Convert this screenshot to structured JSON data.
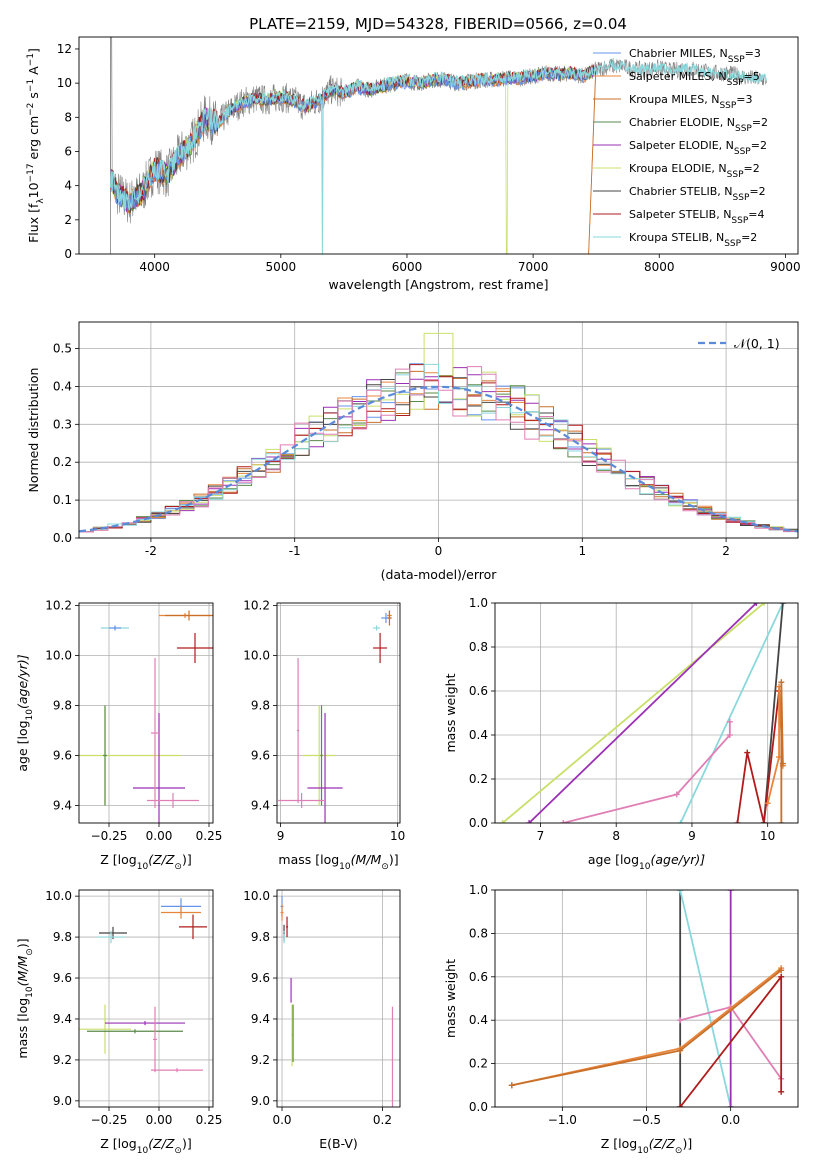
{
  "figure": {
    "title": "PLATE=2159, MJD=54328, FIBERID=0566, z=0.04"
  },
  "series": [
    {
      "name": "Chabrier MILES, N$_{SSP}$=3",
      "label_main": "Chabrier MILES, N",
      "label_sub": "SSP",
      "label_tail": "=3",
      "color": "#6495ed"
    },
    {
      "name": "Salpeter MILES, N$_{SSP}$=5",
      "label_main": "Salpeter MILES, N",
      "label_sub": "SSP",
      "label_tail": "=5",
      "color": "#e8853d"
    },
    {
      "name": "Kroupa MILES, N$_{SSP}$=3",
      "label_main": "Kroupa MILES, N",
      "label_sub": "SSP",
      "label_tail": "=3",
      "color": "#c8702a"
    },
    {
      "name": "Chabrier ELODIE, N$_{SSP}$=2",
      "label_main": "Chabrier ELODIE, N",
      "label_sub": "SSP",
      "label_tail": "=2",
      "color": "#5a8a4a"
    },
    {
      "name": "Salpeter ELODIE, N$_{SSP}$=2",
      "label_main": "Salpeter ELODIE, N",
      "label_sub": "SSP",
      "label_tail": "=2",
      "color": "#9b30b5"
    },
    {
      "name": "Kroupa ELODIE, N$_{SSP}$=2",
      "label_main": "Kroupa ELODIE, N",
      "label_sub": "SSP",
      "label_tail": "=2",
      "color": "#c8e06a"
    },
    {
      "name": "Chabrier STELIB, N$_{SSP}$=2",
      "label_main": "Chabrier STELIB, N",
      "label_sub": "SSP",
      "label_tail": "=2",
      "color": "#444444"
    },
    {
      "name": "Salpeter STELIB, N$_{SSP}$=4",
      "label_main": "Salpeter STELIB, N",
      "label_sub": "SSP",
      "label_tail": "=4",
      "color": "#b01c1c"
    },
    {
      "name": "Kroupa STELIB, N$_{SSP}$=2",
      "label_main": "Kroupa STELIB, N",
      "label_sub": "SSP",
      "label_tail": "=2",
      "color": "#8ad8dc"
    }
  ],
  "extra_colors": {
    "data": "#808080",
    "pink": "#e07fb5",
    "normal_curve": "#5b8ad8"
  },
  "chart_data": [
    {
      "id": "spectrum",
      "type": "line",
      "xlabel": "wavelength [Angstrom, rest frame]",
      "ylabel_main": "Flux [f",
      "ylabel_sub": "λ",
      "ylabel_mid": "10",
      "ylabel_sup": "−17",
      "ylabel_tail1": " erg cm",
      "ylabel_sup2": "−2",
      "ylabel_tail2": " s",
      "ylabel_sup3": "−1",
      "ylabel_tail3": " A",
      "ylabel_sup4": "−1",
      "ylabel_tail4": "]",
      "xlim": [
        3400,
        9100
      ],
      "ylim": [
        0,
        12.7
      ],
      "xticks": [
        4000,
        5000,
        6000,
        7000,
        8000,
        9000
      ],
      "yticks": [
        0,
        2,
        4,
        6,
        8,
        10,
        12
      ],
      "grid": false,
      "legend": "right",
      "continuum": {
        "x": [
          3650,
          3700,
          3800,
          3900,
          4000,
          4100,
          4200,
          4300,
          4400,
          4500,
          4600,
          4700,
          4800,
          4900,
          5000,
          5100,
          5200,
          5300,
          5400,
          5500,
          5600,
          5700,
          5800,
          5900,
          6000,
          6100,
          6200,
          6300,
          6400,
          6500,
          6600,
          6700,
          6800,
          6900,
          7000,
          7100,
          7200,
          7300,
          7400,
          7500,
          7600,
          7700,
          7800,
          7900,
          8000,
          8100,
          8200,
          8300,
          8400,
          8500,
          8600,
          8700,
          8850
        ],
        "y": [
          4.5,
          3.6,
          3.0,
          3.6,
          5.0,
          4.6,
          5.8,
          6.6,
          8.0,
          7.6,
          8.4,
          8.9,
          9.1,
          9.0,
          9.2,
          9.0,
          8.6,
          9.0,
          9.6,
          9.4,
          9.8,
          9.6,
          9.8,
          10.0,
          10.1,
          10.0,
          10.2,
          10.2,
          10.0,
          10.1,
          10.2,
          10.2,
          10.3,
          10.3,
          10.4,
          10.6,
          10.5,
          10.6,
          10.4,
          10.8,
          11.0,
          11.0,
          10.8,
          10.8,
          10.9,
          10.7,
          10.9,
          10.8,
          10.6,
          10.6,
          10.5,
          10.3,
          10.2
        ]
      },
      "model_range": [
        3650,
        7500
      ],
      "data_range": [
        3650,
        8850
      ]
    },
    {
      "id": "residuals",
      "type": "histogram",
      "xlabel": "(data-model)/error",
      "ylabel": "Normed distribution",
      "xlim": [
        -2.5,
        2.5
      ],
      "ylim": [
        0,
        0.57
      ],
      "xticks": [
        -2,
        -1,
        0,
        1,
        2
      ],
      "yticks": [
        0.0,
        0.1,
        0.2,
        0.3,
        0.4,
        0.5
      ],
      "grid": true,
      "legend": "top-right",
      "normal_label": "𝒩(0, 1)",
      "bin_width": 0.1
    },
    {
      "id": "age-vs-Z",
      "type": "scatter",
      "xlabel_main": "Z [log",
      "xlabel_sub": "10",
      "xlabel_tail": "(Z/Z",
      "xlabel_sub2": "⊙",
      "xlabel_end": ")]",
      "ylabel_main": "age  [log",
      "ylabel_sub": "10",
      "ylabel_tail": "(age/yr)]",
      "xlim": [
        -0.4,
        0.27
      ],
      "ylim": [
        9.33,
        10.21
      ],
      "xticks": [
        -0.25,
        0.0,
        0.25
      ],
      "xticklabels": [
        "−0.25",
        "0.00",
        "0.25"
      ],
      "yticks": [
        9.4,
        9.6,
        9.8,
        10.0,
        10.2
      ],
      "grid": true,
      "points": [
        {
          "c": 8,
          "x": -0.22,
          "y": 10.11,
          "dx": 0.07,
          "dy": 0.01
        },
        {
          "c": 0,
          "x": -0.22,
          "y": 10.11,
          "dx": 0.03,
          "dy": 0.01
        },
        {
          "c": 1,
          "x": 0.13,
          "y": 10.16,
          "dx": 0.13,
          "dy": 0.01
        },
        {
          "c": 2,
          "x": 0.15,
          "y": 10.16,
          "dx": 0.12,
          "dy": 0.02
        },
        {
          "c": 7,
          "x": 0.18,
          "y": 10.03,
          "dx": 0.09,
          "dy": 0.06
        },
        {
          "c": 5,
          "x": -0.27,
          "y": 9.6,
          "dx": 0.38,
          "dy": 0.2
        },
        {
          "c": 3,
          "x": -0.27,
          "y": 9.6,
          "dx": 0.01,
          "dy": 0.2
        },
        {
          "c": 4,
          "x": 0.0,
          "y": 9.47,
          "dx": 0.13,
          "dy": 0.3
        },
        {
          "c": -1,
          "x": -0.02,
          "y": 9.69,
          "dx": 0.02,
          "dy": 0.3
        },
        {
          "c": -1,
          "x": 0.07,
          "y": 9.42,
          "dx": 0.13,
          "dy": 0.03
        }
      ]
    },
    {
      "id": "age-vs-mass",
      "type": "scatter",
      "xlabel_main": "mass [log",
      "xlabel_sub": "10",
      "xlabel_tail": "(M/M",
      "xlabel_sub2": "⊙",
      "xlabel_end": ")]",
      "xlim": [
        8.97,
        10.02
      ],
      "ylim": [
        9.33,
        10.21
      ],
      "xticks": [
        9,
        10
      ],
      "yticks": [
        9.4,
        9.6,
        9.8,
        10.0,
        10.2
      ],
      "grid": true,
      "points": [
        {
          "c": 8,
          "x": 9.82,
          "y": 10.11,
          "dx": 0.03,
          "dy": 0.01
        },
        {
          "c": 0,
          "x": 9.9,
          "y": 10.15,
          "dx": 0.04,
          "dy": 0.02
        },
        {
          "c": 1,
          "x": 9.93,
          "y": 10.16,
          "dx": 0.02,
          "dy": 0.02
        },
        {
          "c": 2,
          "x": 9.93,
          "y": 10.15,
          "dx": 0.02,
          "dy": 0.03
        },
        {
          "c": 7,
          "x": 9.85,
          "y": 10.03,
          "dx": 0.06,
          "dy": 0.06
        },
        {
          "c": 5,
          "x": 9.33,
          "y": 9.6,
          "dx": 0.14,
          "dy": 0.2
        },
        {
          "c": 3,
          "x": 9.35,
          "y": 9.6,
          "dx": 0.01,
          "dy": 0.2
        },
        {
          "c": 4,
          "x": 9.38,
          "y": 9.47,
          "dx": 0.15,
          "dy": 0.3
        },
        {
          "c": -1,
          "x": 9.15,
          "y": 9.7,
          "dx": 0.01,
          "dy": 0.29
        },
        {
          "c": -1,
          "x": 9.18,
          "y": 9.42,
          "dx": 0.2,
          "dy": 0.03
        }
      ]
    },
    {
      "id": "mass-weight-vs-age",
      "type": "line",
      "xlabel_main": "age  [log",
      "xlabel_sub": "10",
      "xlabel_tail": "(age/yr)]",
      "ylabel": "mass weight",
      "xlim": [
        6.4,
        10.4
      ],
      "ylim": [
        0,
        1.0
      ],
      "xticks": [
        7,
        8,
        9,
        10
      ],
      "yticks": [
        0.0,
        0.2,
        0.4,
        0.6,
        0.8,
        1.0
      ],
      "grid": true,
      "lines": [
        {
          "c": 5,
          "x": [
            6.5,
            9.95
          ],
          "y": [
            0.0,
            1.0
          ]
        },
        {
          "c": 4,
          "x": [
            6.85,
            9.85
          ],
          "y": [
            0.0,
            1.0
          ]
        },
        {
          "c": 8,
          "x": [
            8.85,
            10.2
          ],
          "y": [
            0.0,
            1.0
          ]
        },
        {
          "c": 6,
          "x": [
            9.95,
            10.2
          ],
          "y": [
            0.0,
            1.0
          ]
        },
        {
          "c": -1,
          "x": [
            7.3,
            8.8,
            9.5,
            9.5
          ],
          "y": [
            0.0,
            0.13,
            0.4,
            0.46
          ]
        },
        {
          "c": 7,
          "x": [
            9.6,
            9.73,
            9.95,
            10.15
          ],
          "y": [
            0.0,
            0.32,
            0.0,
            0.6
          ]
        },
        {
          "c": 1,
          "x": [
            10.0,
            10.15,
            10.15,
            10.2
          ],
          "y": [
            0.09,
            0.3,
            0.62,
            0.26
          ]
        },
        {
          "c": 2,
          "x": [
            10.18,
            10.18,
            10.2
          ],
          "y": [
            0.0,
            0.64,
            0.27
          ]
        }
      ]
    },
    {
      "id": "mass-vs-Z",
      "type": "scatter",
      "xlabel_main": "Z [log",
      "xlabel_sub": "10",
      "xlabel_tail": "(Z/Z",
      "xlabel_sub2": "⊙",
      "xlabel_end": ")]",
      "ylabel_main": "mass [log",
      "ylabel_sub": "10",
      "ylabel_tail": "(M/M",
      "ylabel_sub2": "⊙",
      "ylabel_end": ")]",
      "xlim": [
        -0.4,
        0.27
      ],
      "ylim": [
        8.97,
        10.03
      ],
      "xticks": [
        -0.25,
        0.0,
        0.25
      ],
      "xticklabels": [
        "−0.25",
        "0.00",
        "0.25"
      ],
      "yticks": [
        9.0,
        9.2,
        9.4,
        9.6,
        9.8,
        10.0
      ],
      "grid": true,
      "points": [
        {
          "c": 6,
          "x": -0.23,
          "y": 9.82,
          "dx": 0.07,
          "dy": 0.03
        },
        {
          "c": 8,
          "x": -0.24,
          "y": 9.8,
          "dx": 0.07,
          "dy": 0.03
        },
        {
          "c": 0,
          "x": 0.11,
          "y": 9.95,
          "dx": 0.1,
          "dy": 0.04
        },
        {
          "c": 1,
          "x": 0.11,
          "y": 9.92,
          "dx": 0.1,
          "dy": 0.03
        },
        {
          "c": 7,
          "x": 0.17,
          "y": 9.85,
          "dx": 0.07,
          "dy": 0.06
        },
        {
          "c": 5,
          "x": -0.27,
          "y": 9.35,
          "dx": 0.13,
          "dy": 0.12
        },
        {
          "c": 3,
          "x": -0.12,
          "y": 9.34,
          "dx": 0.24,
          "dy": 0.01
        },
        {
          "c": 4,
          "x": -0.07,
          "y": 9.38,
          "dx": 0.2,
          "dy": 0.01
        },
        {
          "c": -1,
          "x": -0.02,
          "y": 9.3,
          "dx": 0.01,
          "dy": 0.16
        },
        {
          "c": -1,
          "x": 0.09,
          "y": 9.15,
          "dx": 0.13,
          "dy": 0.01
        }
      ]
    },
    {
      "id": "mass-vs-EBV",
      "type": "scatter",
      "xlabel": "E(B-V)",
      "xlim": [
        -0.01,
        0.235
      ],
      "ylim": [
        8.97,
        10.03
      ],
      "xticks": [
        0.0,
        0.2
      ],
      "xticklabels": [
        "0.0",
        "0.2"
      ],
      "yticks": [
        9.0,
        9.2,
        9.4,
        9.6,
        9.8,
        10.0
      ],
      "grid": true,
      "points": [
        {
          "c": 0,
          "x": 0.0,
          "y": 9.95,
          "dx": 0.003,
          "dy": 0.05
        },
        {
          "c": 1,
          "x": 0.0,
          "y": 9.92,
          "dx": 0.003,
          "dy": 0.04
        },
        {
          "c": 6,
          "x": 0.004,
          "y": 9.82,
          "dx": 0.002,
          "dy": 0.04
        },
        {
          "c": 8,
          "x": 0.004,
          "y": 9.8,
          "dx": 0.002,
          "dy": 0.03
        },
        {
          "c": 7,
          "x": 0.01,
          "y": 9.85,
          "dx": 0.002,
          "dy": 0.05
        },
        {
          "c": 5,
          "x": 0.02,
          "y": 9.32,
          "dx": 0.002,
          "dy": 0.15
        },
        {
          "c": 3,
          "x": 0.022,
          "y": 9.33,
          "dx": 0.001,
          "dy": 0.14
        },
        {
          "c": 4,
          "x": 0.018,
          "y": 9.54,
          "dx": 0.001,
          "dy": 0.06
        },
        {
          "c": -1,
          "x": 0.22,
          "y": 9.2,
          "dx": 0.001,
          "dy": 0.26
        }
      ]
    },
    {
      "id": "mass-weight-vs-Z",
      "type": "line",
      "xlabel_main": "Z [log",
      "xlabel_sub": "10",
      "xlabel_tail": "(Z/Z",
      "xlabel_sub2": "⊙",
      "xlabel_end": ")]",
      "ylabel": "mass weight",
      "xlim": [
        -1.4,
        0.4
      ],
      "ylim": [
        0,
        1.0
      ],
      "xticks": [
        -1.0,
        -0.5,
        0.0
      ],
      "xticklabels": [
        "−1.0",
        "−0.5",
        "0.0"
      ],
      "yticks": [
        0.0,
        0.2,
        0.4,
        0.6,
        0.8,
        1.0
      ],
      "grid": true,
      "lines": [
        {
          "c": 6,
          "x": [
            -0.3,
            -0.3
          ],
          "y": [
            0.0,
            1.0
          ]
        },
        {
          "c": 8,
          "x": [
            -0.3,
            0.0
          ],
          "y": [
            1.0,
            0.0
          ]
        },
        {
          "c": 4,
          "x": [
            0.0,
            0.0
          ],
          "y": [
            0.0,
            1.0
          ]
        },
        {
          "c": -1,
          "x": [
            -0.3,
            0.0,
            0.3
          ],
          "y": [
            0.4,
            0.46,
            0.13
          ]
        },
        {
          "c": 7,
          "x": [
            -0.3,
            0.3,
            0.3
          ],
          "y": [
            0.0,
            0.6,
            0.07
          ]
        },
        {
          "c": 1,
          "x": [
            -1.3,
            -0.3,
            0.3
          ],
          "y": [
            0.1,
            0.27,
            0.64
          ]
        },
        {
          "c": 2,
          "x": [
            -1.3,
            -0.3,
            0.3
          ],
          "y": [
            0.1,
            0.26,
            0.63
          ]
        }
      ]
    }
  ]
}
